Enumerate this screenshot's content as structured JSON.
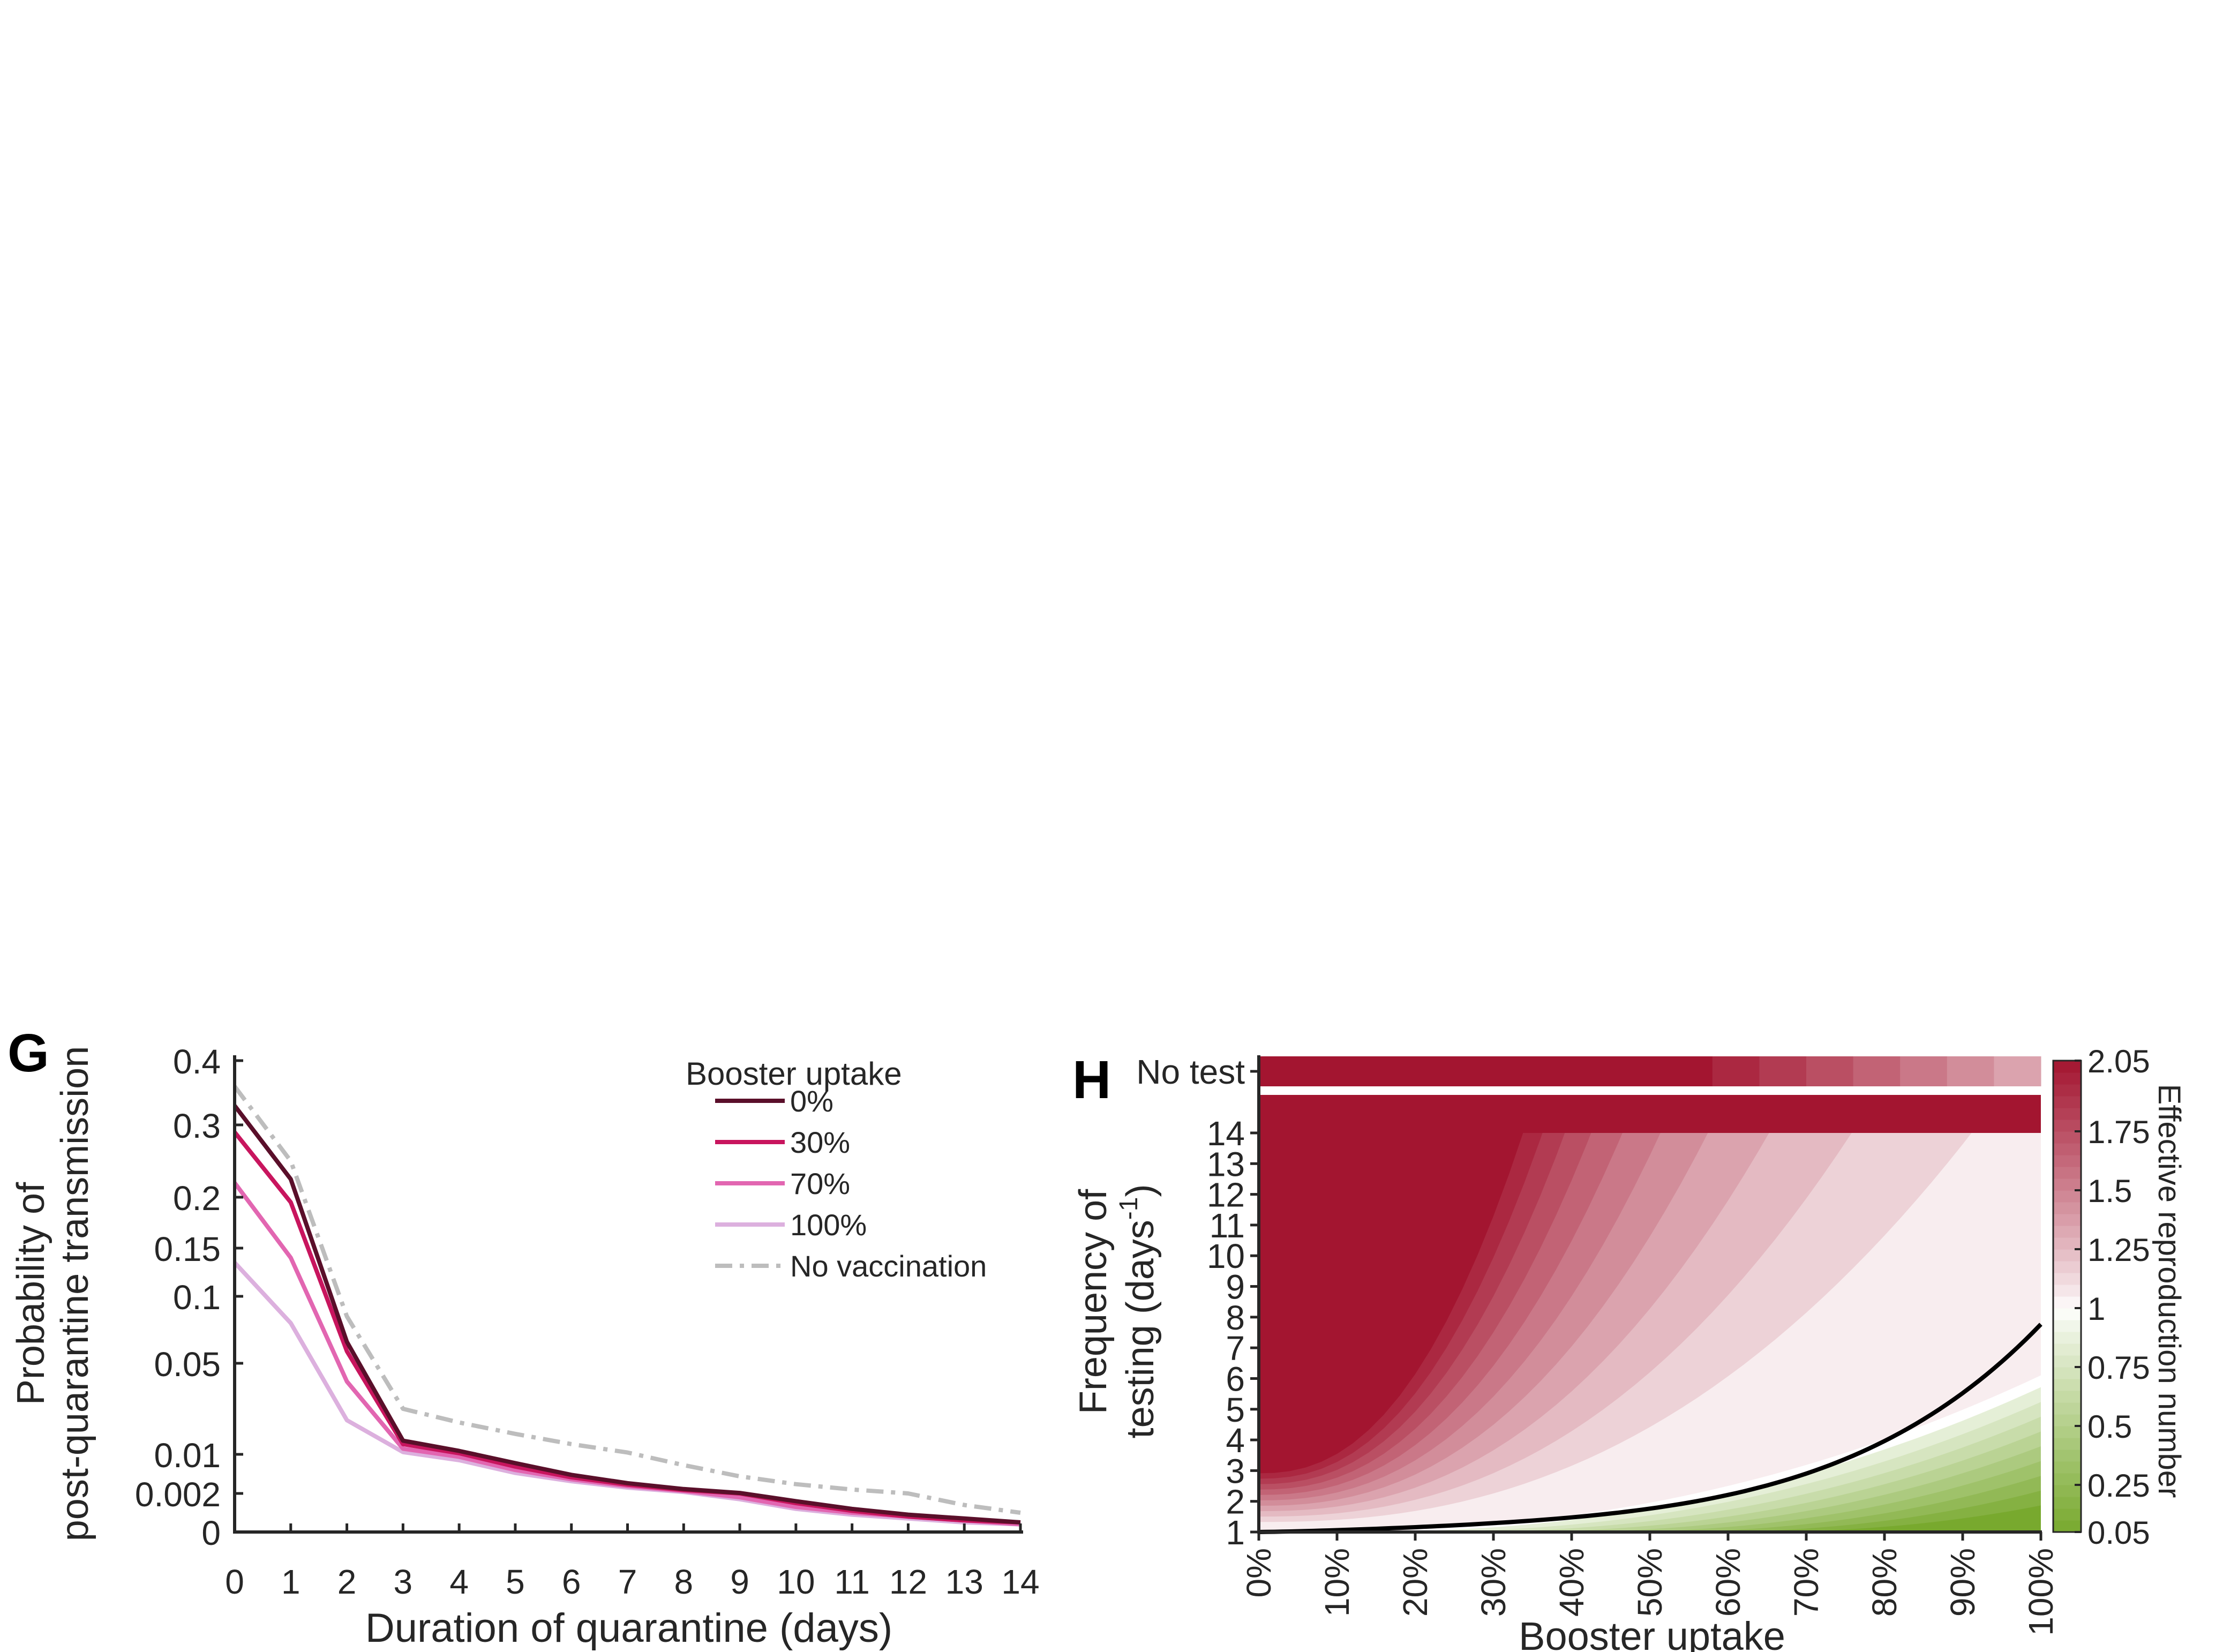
{
  "chart_data": [
    {
      "panel": "G",
      "type": "line",
      "xlabel": "Duration of quarantine (days)",
      "ylabel": [
        "Probability of",
        "post-quarantine transmission"
      ],
      "x": [
        0,
        1,
        2,
        3,
        4,
        5,
        6,
        7,
        8,
        9,
        10,
        11,
        12,
        13,
        14
      ],
      "xlim": [
        0,
        14
      ],
      "ylim": [
        0,
        0.4
      ],
      "y_scale": "nonlinear",
      "y_ticks": [
        0,
        0.002,
        0.01,
        0.05,
        0.1,
        0.15,
        0.2,
        0.3,
        0.4
      ],
      "y_tick_labels": [
        "0",
        "0.002",
        "0.01",
        "0.05",
        "0.1",
        "0.15",
        "0.2",
        "0.3",
        "0.4"
      ],
      "legend": {
        "title": "Booster uptake",
        "placement": "top-right"
      },
      "series": [
        {
          "name": "0%",
          "color": "#5a0f2a",
          "dash": "solid",
          "values": [
            0.33,
            0.225,
            0.066,
            0.016,
            0.0115,
            0.0082,
            0.0058,
            0.0041,
            0.0029,
            0.0021,
            0.0016,
            0.0012,
            0.0009,
            0.0007,
            0.0005
          ]
        },
        {
          "name": "30%",
          "color": "#c8155e",
          "dash": "solid",
          "values": [
            0.29,
            0.195,
            0.059,
            0.0145,
            0.0105,
            0.0075,
            0.0053,
            0.0038,
            0.0027,
            0.002,
            0.0015,
            0.0011,
            0.0008,
            0.0006,
            0.0005
          ]
        },
        {
          "name": "70%",
          "color": "#e266b1",
          "dash": "solid",
          "values": [
            0.22,
            0.14,
            0.042,
            0.0125,
            0.0095,
            0.0068,
            0.0049,
            0.0035,
            0.0025,
            0.0018,
            0.0013,
            0.001,
            0.0008,
            0.0006,
            0.0004
          ]
        },
        {
          "name": "100%",
          "color": "#dcb0de",
          "dash": "solid",
          "values": [
            0.135,
            0.08,
            0.025,
            0.011,
            0.0088,
            0.0062,
            0.0045,
            0.0032,
            0.0023,
            0.0017,
            0.0012,
            0.0009,
            0.0007,
            0.0005,
            0.0004
          ]
        },
        {
          "name": "No vaccination",
          "color": "#bdbdbd",
          "dash": "dash-dot",
          "values": [
            0.36,
            0.25,
            0.085,
            0.03,
            0.024,
            0.019,
            0.0145,
            0.0108,
            0.0078,
            0.0055,
            0.0039,
            0.0028,
            0.002,
            0.0014,
            0.001
          ]
        }
      ]
    },
    {
      "panel": "H",
      "type": "heatmap",
      "xlabel": "Booster uptake",
      "ylabel": [
        "Frequency of",
        "testing (days"
      ],
      "ylabel_superscript": "-1",
      "ylabel_close": ")",
      "x_tick_labels": [
        "0%",
        "10%",
        "20%",
        "30%",
        "40%",
        "50%",
        "60%",
        "70%",
        "80%",
        "90%",
        "100%"
      ],
      "y_tick_labels": [
        "1",
        "2",
        "3",
        "4",
        "5",
        "6",
        "7",
        "8",
        "9",
        "10",
        "11",
        "12",
        "13",
        "14"
      ],
      "no_test_label": "No test",
      "x_range": [
        0,
        100
      ],
      "y_range": [
        1,
        14
      ],
      "threshold_line": {
        "value": 1,
        "color": "#000000"
      },
      "colorbar": {
        "label": "Effective reproduction number",
        "range": [
          0.05,
          2.05
        ],
        "tick_values": [
          2.05,
          1.75,
          1.5,
          1.25,
          1,
          0.75,
          0.5,
          0.25,
          0.05
        ],
        "tick_labels": [
          "2.05",
          "1.75",
          "1.5",
          "1.25",
          "1",
          "0.75",
          "0.5",
          "0.25",
          "0.05"
        ],
        "high_color": "#a31530",
        "mid_color": "#ffffff",
        "low_color": "#78a92e"
      },
      "no_test_row": {
        "segments_x_start": [
          0,
          58,
          64,
          70,
          76,
          82,
          88,
          94
        ],
        "values": [
          2.05,
          1.95,
          1.85,
          1.75,
          1.65,
          1.55,
          1.45,
          1.35
        ]
      }
    }
  ],
  "panel_letters": {
    "g": "G",
    "h": "H"
  }
}
